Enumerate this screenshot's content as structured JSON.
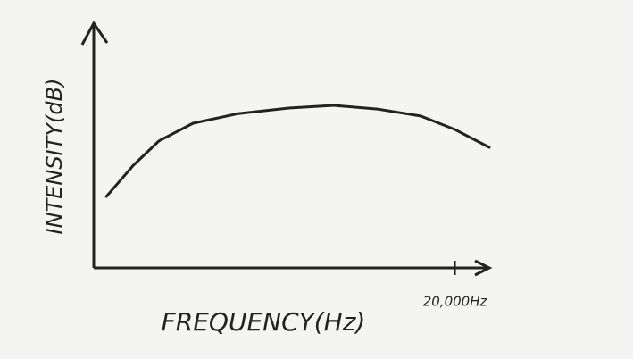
{
  "chart_data": {
    "type": "line",
    "ylabel": "INTENSITY(dB)",
    "xlabel": "FREQUENCY(Hz)",
    "x": [
      700,
      2200,
      3600,
      5500,
      8000,
      10800,
      13300,
      15700,
      18100,
      20000,
      21900
    ],
    "series": [
      {
        "color": "#222222",
        "values": [
          29.6,
          42.6,
          52.6,
          60,
          64,
          66.3,
          67.4,
          65.9,
          63,
          57.4,
          50
        ]
      }
    ],
    "xlim": [
      0,
      22000
    ],
    "ylim": [
      0,
      100
    ],
    "xticks": [
      {
        "value": 20000,
        "label": "20,000Hz"
      }
    ]
  }
}
